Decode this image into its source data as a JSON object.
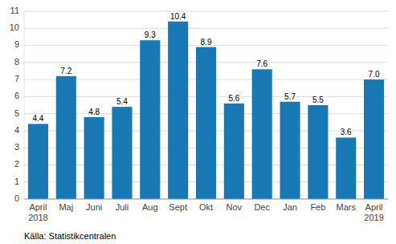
{
  "chart_data": {
    "type": "bar",
    "categories": [
      "April\n2018",
      "Maj",
      "Juni",
      "Juli",
      "Aug",
      "Sept",
      "Okt",
      "Nov",
      "Dec",
      "Jan",
      "Feb",
      "Mars",
      "April\n2019"
    ],
    "values": [
      4.4,
      7.2,
      4.8,
      5.4,
      9.3,
      10.4,
      8.9,
      5.6,
      7.6,
      5.7,
      5.5,
      3.6,
      7.0
    ],
    "value_labels": [
      "4.4",
      "7.2",
      "4.8",
      "5.4",
      "9.3",
      "10.4",
      "8.9",
      "5.6",
      "7.6",
      "5.7",
      "5.5",
      "3.6",
      "7.0"
    ],
    "data_labels": true,
    "color": "#1878b4",
    "ylim": [
      0,
      11
    ],
    "yticks": [
      0,
      1,
      2,
      3,
      4,
      5,
      6,
      7,
      8,
      9,
      10,
      11
    ],
    "grid": true,
    "annotation": "Källa: Statistikcentralen"
  }
}
